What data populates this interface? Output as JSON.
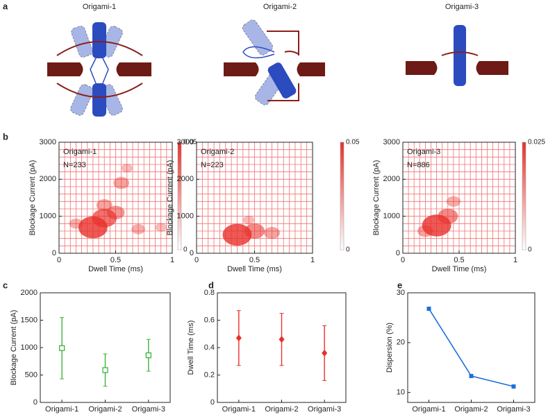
{
  "panel_labels": [
    "a",
    "b",
    "c",
    "d",
    "e"
  ],
  "schematics": [
    {
      "title": "Origami-1"
    },
    {
      "title": "Origami-2"
    },
    {
      "title": "Origami-3"
    }
  ],
  "chart_data": [
    {
      "type": "density",
      "xlabel": "Dwell Time (ms)",
      "ylabel": "Blockage Current (pA)",
      "annotations": [
        "Origami-1",
        "N=233"
      ],
      "xlim": [
        0,
        1
      ],
      "xticks": [
        0,
        0.5,
        1
      ],
      "ylim": [
        0,
        3000
      ],
      "yticks": [
        0,
        1000,
        2000,
        3000
      ],
      "grid": true,
      "grid_step_x": 0.05,
      "grid_step_y": 200,
      "grid_color": "#f07070",
      "clim": [
        0,
        0.05
      ],
      "cticks": [
        0,
        0.05
      ],
      "colormap": [
        "#ffffff",
        "#e8302a"
      ],
      "x": [
        0.15,
        0.3,
        0.4,
        0.4,
        0.5,
        0.55,
        0.6,
        0.7,
        0.9
      ],
      "y": [
        800,
        700,
        950,
        1300,
        1100,
        1900,
        2300,
        650,
        700
      ],
      "values": [
        0.015,
        0.05,
        0.04,
        0.02,
        0.025,
        0.02,
        0.01,
        0.015,
        0.01
      ]
    },
    {
      "type": "density",
      "xlabel": "Dwell Time (ms)",
      "ylabel": "Blockage Current (pA)",
      "annotations": [
        "Origami-2",
        "N=223"
      ],
      "xlim": [
        0,
        1
      ],
      "xticks": [
        0,
        0.5,
        1
      ],
      "ylim": [
        0,
        3000
      ],
      "yticks": [
        0,
        1000,
        2000,
        3000
      ],
      "grid": true,
      "grid_step_x": 0.05,
      "grid_step_y": 200,
      "grid_color": "#f07070",
      "clim": [
        0,
        0.05
      ],
      "cticks": [
        0,
        0.05
      ],
      "colormap": [
        "#ffffff",
        "#e8302a"
      ],
      "x": [
        0.35,
        0.45,
        0.5,
        0.65
      ],
      "y": [
        500,
        900,
        600,
        550
      ],
      "values": [
        0.05,
        0.01,
        0.03,
        0.02
      ]
    },
    {
      "type": "density",
      "xlabel": "Dwell Time (ms)",
      "ylabel": "Blockage Current (pA)",
      "annotations": [
        "Origami-3",
        "N=886"
      ],
      "xlim": [
        0,
        1
      ],
      "xticks": [
        0,
        0.5,
        1
      ],
      "ylim": [
        0,
        3000
      ],
      "yticks": [
        0,
        1000,
        2000,
        3000
      ],
      "grid": true,
      "grid_step_x": 0.05,
      "grid_step_y": 200,
      "grid_color": "#f07070",
      "clim": [
        0,
        0.025
      ],
      "cticks": [
        0,
        0.025
      ],
      "colormap": [
        "#ffffff",
        "#e8302a"
      ],
      "x": [
        0.2,
        0.3,
        0.4,
        0.45
      ],
      "y": [
        600,
        750,
        1000,
        1400
      ],
      "values": [
        0.01,
        0.025,
        0.015,
        0.008
      ]
    },
    {
      "type": "errorbar",
      "ylabel": "Blockage Current (pA)",
      "categories": [
        "Origami-1",
        "Origami-2",
        "Origami-3"
      ],
      "values": [
        990,
        590,
        860
      ],
      "errors": [
        560,
        295,
        290
      ],
      "color": "#3cb43c",
      "marker": "square",
      "ylim": [
        0,
        2000
      ],
      "yticks": [
        0,
        500,
        1000,
        1500,
        2000
      ]
    },
    {
      "type": "errorbar",
      "ylabel": "Dwell Time (ms)",
      "categories": [
        "Origami-1",
        "Origami-2",
        "Origami-3"
      ],
      "values": [
        0.47,
        0.46,
        0.36
      ],
      "errors": [
        0.2,
        0.19,
        0.2
      ],
      "color": "#e8302a",
      "marker": "diamond",
      "ylim": [
        0,
        0.8
      ],
      "yticks": [
        0,
        0.2,
        0.4,
        0.6,
        0.8
      ]
    },
    {
      "type": "line",
      "ylabel": "Dispersion (%)",
      "categories": [
        "Origami-1",
        "Origami-2",
        "Origami-3"
      ],
      "values": [
        26.8,
        13.3,
        11.2
      ],
      "color": "#1e6fdc",
      "marker": "square",
      "ylim": [
        8,
        30
      ],
      "yticks": [
        10,
        20,
        30
      ]
    }
  ]
}
